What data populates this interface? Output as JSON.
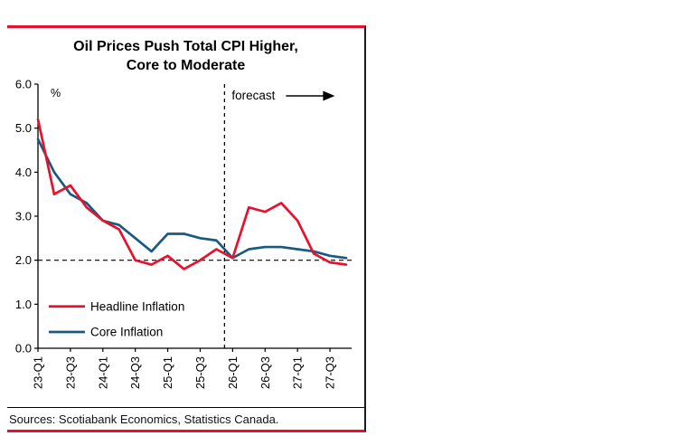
{
  "panel": {
    "title_line1": "Oil Prices Push Total CPI Higher,",
    "title_line2": "Core to Moderate",
    "sources": "Sources: Scotiabank Economics, Statistics Canada.",
    "accent_color": "#e8112d"
  },
  "chart_data": {
    "type": "line",
    "title": "Oil Prices Push Total CPI Higher, Core to Moderate",
    "ylabel": "%",
    "ylim": [
      0.0,
      6.0
    ],
    "ytick_step": 1.0,
    "yticks": [
      "0.0",
      "1.0",
      "2.0",
      "3.0",
      "4.0",
      "5.0",
      "6.0"
    ],
    "grid": "off",
    "reference_line_y": 2.0,
    "forecast_start_category": "26-Q1",
    "forecast_label": "forecast",
    "legend_position": "lower-left",
    "categories": [
      "23-Q1",
      "23-Q2",
      "23-Q3",
      "23-Q4",
      "24-Q1",
      "24-Q2",
      "24-Q3",
      "24-Q4",
      "25-Q1",
      "25-Q2",
      "25-Q3",
      "25-Q4",
      "26-Q1",
      "26-Q2",
      "26-Q3",
      "26-Q4",
      "27-Q1",
      "27-Q2",
      "27-Q3",
      "27-Q4"
    ],
    "xtick_labels": [
      "23-Q1",
      "23-Q3",
      "24-Q1",
      "24-Q3",
      "25-Q1",
      "25-Q3",
      "26-Q1",
      "26-Q3",
      "27-Q1",
      "27-Q3"
    ],
    "series": [
      {
        "name": "Headline Inflation",
        "color": "#e8112d",
        "values": [
          5.2,
          3.5,
          3.7,
          3.2,
          2.9,
          2.7,
          2.0,
          1.9,
          2.1,
          1.8,
          2.0,
          2.25,
          2.05,
          3.2,
          3.1,
          3.3,
          2.9,
          2.15,
          1.95,
          1.9
        ]
      },
      {
        "name": "Core Inflation",
        "color": "#1a5a80",
        "values": [
          4.75,
          4.0,
          3.5,
          3.3,
          2.9,
          2.8,
          2.5,
          2.2,
          2.6,
          2.6,
          2.5,
          2.45,
          2.05,
          2.25,
          2.3,
          2.3,
          2.25,
          2.2,
          2.1,
          2.05
        ]
      }
    ]
  }
}
